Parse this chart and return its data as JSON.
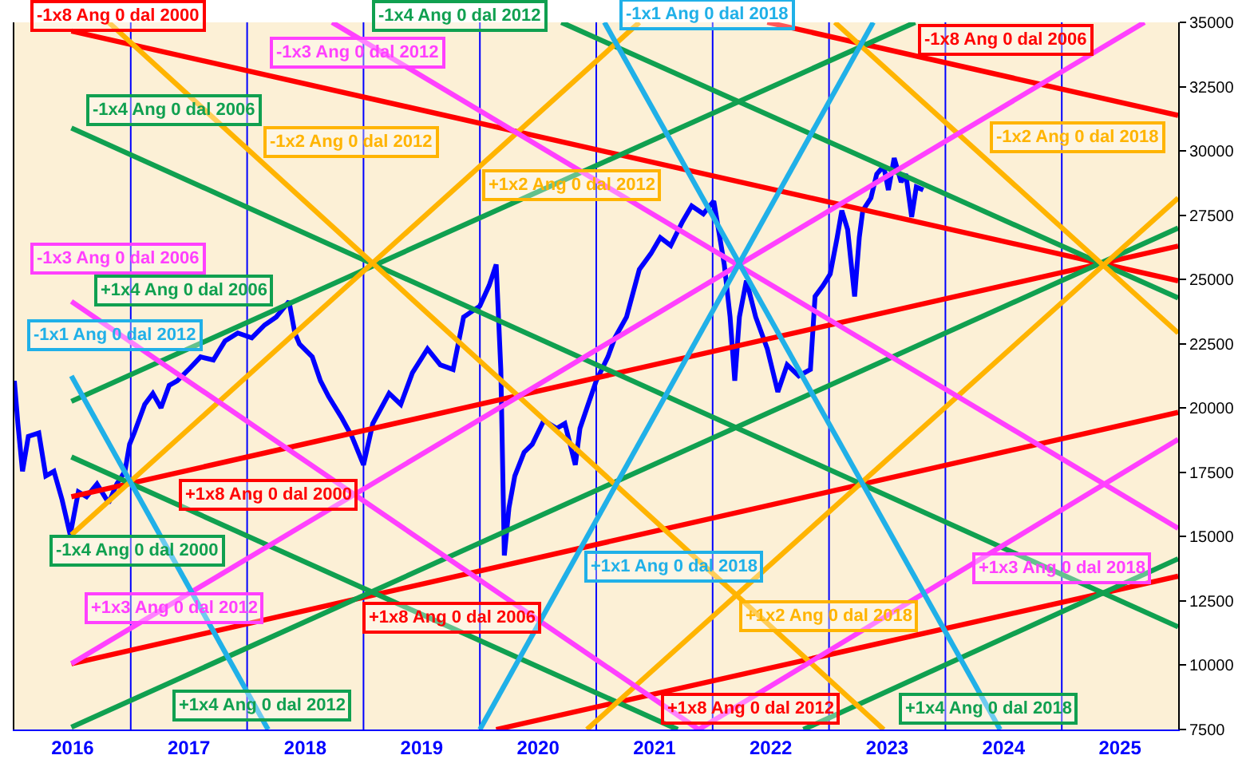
{
  "chart_data": {
    "type": "line",
    "xlim": [
      2016,
      2026
    ],
    "ylim": [
      7500,
      35000
    ],
    "xticks": [
      {
        "value": 2016.5,
        "label": "2016"
      },
      {
        "value": 2017.5,
        "label": "2017"
      },
      {
        "value": 2018.5,
        "label": "2018"
      },
      {
        "value": 2019.5,
        "label": "2019"
      },
      {
        "value": 2020.5,
        "label": "2020"
      },
      {
        "value": 2021.5,
        "label": "2021"
      },
      {
        "value": 2022.5,
        "label": "2022"
      },
      {
        "value": 2023.5,
        "label": "2023"
      },
      {
        "value": 2024.5,
        "label": "2024"
      },
      {
        "value": 2025.5,
        "label": "2025"
      }
    ],
    "yticks": [
      7500,
      10000,
      12500,
      15000,
      17500,
      20000,
      22500,
      25000,
      27500,
      30000,
      32500,
      35000
    ],
    "grid": false,
    "legend": false,
    "ref_lines": [
      {
        "axis": "x",
        "value": 2017,
        "color": "#0000ff"
      },
      {
        "axis": "x",
        "value": 2018,
        "color": "#0000ff"
      },
      {
        "axis": "x",
        "value": 2019,
        "color": "#0000ff"
      },
      {
        "axis": "x",
        "value": 2020,
        "color": "#0000ff"
      },
      {
        "axis": "x",
        "value": 2021,
        "color": "#0000ff"
      },
      {
        "axis": "x",
        "value": 2022,
        "color": "#0000ff"
      },
      {
        "axis": "x",
        "value": 2023,
        "color": "#0000ff"
      },
      {
        "axis": "x",
        "value": 2024,
        "color": "#0000ff"
      },
      {
        "axis": "x",
        "value": 2025,
        "color": "#0000ff"
      }
    ],
    "series": [
      {
        "color": "#0000ff",
        "x": [
          2016.0,
          2016.03,
          2016.07,
          2016.12,
          2016.21,
          2016.27,
          2016.34,
          2016.41,
          2016.48,
          2016.55,
          2016.62,
          2016.71,
          2016.81,
          2016.88,
          2016.95,
          2016.99,
          2017.03,
          2017.12,
          2017.19,
          2017.26,
          2017.33,
          2017.4,
          2017.51,
          2017.6,
          2017.71,
          2017.81,
          2017.92,
          2018.04,
          2018.15,
          2018.25,
          2018.36,
          2018.41,
          2018.45,
          2018.56,
          2018.63,
          2018.7,
          2018.81,
          2018.9,
          2019.0,
          2019.08,
          2019.22,
          2019.32,
          2019.42,
          2019.55,
          2019.66,
          2019.77,
          2019.86,
          2020.0,
          2020.08,
          2020.14,
          2020.18,
          2020.21,
          2020.25,
          2020.3,
          2020.38,
          2020.45,
          2020.55,
          2020.66,
          2020.73,
          2020.82,
          2020.86,
          2020.92,
          2021.0,
          2021.1,
          2021.16,
          2021.26,
          2021.37,
          2021.47,
          2021.55,
          2021.64,
          2021.74,
          2021.82,
          2021.92,
          2022.01,
          2022.1,
          2022.15,
          2022.19,
          2022.23,
          2022.29,
          2022.37,
          2022.47,
          2022.52,
          2022.56,
          2022.64,
          2022.74,
          2022.84,
          2022.88,
          2022.95,
          2023.01,
          2023.07,
          2023.11,
          2023.16,
          2023.22,
          2023.26,
          2023.29,
          2023.36,
          2023.41,
          2023.47,
          2023.51,
          2023.56,
          2023.62,
          2023.66,
          2023.71,
          2023.75,
          2023.81
        ],
        "values": [
          21060,
          19400,
          17540,
          18900,
          19030,
          17360,
          17540,
          16430,
          15070,
          16740,
          16550,
          17050,
          16310,
          17050,
          17540,
          18590,
          19030,
          20140,
          20570,
          20010,
          20880,
          21060,
          21560,
          21990,
          21870,
          22610,
          22920,
          22730,
          23230,
          23540,
          24150,
          22920,
          22490,
          21990,
          21060,
          20450,
          19640,
          18900,
          17790,
          19400,
          20570,
          20140,
          21370,
          22300,
          21680,
          21500,
          23540,
          23970,
          24770,
          25580,
          21500,
          14270,
          16120,
          17360,
          18280,
          18590,
          19520,
          19210,
          19400,
          17790,
          19210,
          20010,
          21060,
          21990,
          22730,
          23540,
          25390,
          26010,
          26630,
          26320,
          27240,
          27860,
          27550,
          28050,
          25580,
          23540,
          21060,
          23540,
          24960,
          23540,
          22300,
          21370,
          20630,
          21680,
          21250,
          21500,
          24340,
          24770,
          25210,
          26630,
          27680,
          26940,
          24340,
          26630,
          27680,
          28170,
          29100,
          29410,
          28480,
          29720,
          28790,
          29100,
          27430,
          28600,
          28480
        ]
      },
      {
        "name": "-1x8 Ang 0 dal 2000",
        "color": "#ff0000",
        "x": [
          2016.49,
          2026
        ],
        "values": [
          34660,
          24950
        ]
      },
      {
        "name": "-1x8 Ang 0 dal 2006",
        "color": "#ff0000",
        "x": [
          2022.47,
          2026
        ],
        "values": [
          35000,
          31380
        ]
      },
      {
        "name": "+1x8 Ang 0 dal 2000",
        "color": "#ff0000",
        "x": [
          2016.49,
          2026
        ],
        "values": [
          16550,
          26300
        ]
      },
      {
        "name": "+1x8 Ang 0 dal 2006",
        "color": "#ff0000",
        "x": [
          2016.49,
          2026
        ],
        "values": [
          10060,
          19830
        ]
      },
      {
        "name": "+1x8 Ang 0 dal 2012",
        "color": "#ff0000",
        "x": [
          2020.14,
          2026
        ],
        "values": [
          7500,
          13460
        ]
      },
      {
        "name": "-1x4 Ang 0 dal 2006",
        "color": "#10a050",
        "x": [
          2016.49,
          2026
        ],
        "values": [
          30890,
          11490
        ]
      },
      {
        "name": "-1x4 Ang 0 dal 2012",
        "color": "#10a050",
        "x": [
          2020.7,
          2026
        ],
        "values": [
          35000,
          24280
        ]
      },
      {
        "name": "-1x4 Ang 0 dal 2000",
        "color": "#10a050",
        "x": [
          2016.49,
          2021.7
        ],
        "values": [
          18100,
          7500
        ]
      },
      {
        "name": "+1x4 Ang 0 dal 2006",
        "color": "#10a050",
        "x": [
          2016.49,
          2023.74
        ],
        "values": [
          20260,
          35000
        ]
      },
      {
        "name": "+1x4 Ang 0 dal 2012",
        "color": "#10a050",
        "x": [
          2016.49,
          2026
        ],
        "values": [
          7590,
          27000
        ]
      },
      {
        "name": "+1x4 Ang 0 dal 2018",
        "color": "#10a050",
        "x": [
          2022.78,
          2026
        ],
        "values": [
          7500,
          14140
        ]
      },
      {
        "name": "-1x2 Ang 0 dal 2012",
        "color": "#ffb400",
        "x": [
          2016.81,
          2023.47
        ],
        "values": [
          35000,
          7500
        ]
      },
      {
        "name": "+1x2 Ang 0 dal 2012",
        "color": "#ffb400",
        "x": [
          2016.49,
          2021.37
        ],
        "values": [
          15070,
          35000
        ]
      },
      {
        "name": "-1x2 Ang 0 dal 2018",
        "color": "#ffb400",
        "x": [
          2023.05,
          2026
        ],
        "values": [
          35000,
          22920
        ]
      },
      {
        "name": "+1x2 Ang 0 dal 2018",
        "color": "#ffb400",
        "x": [
          2020.92,
          2026
        ],
        "values": [
          7500,
          28170
        ]
      },
      {
        "name": "-1x3 Ang 0 dal 2012",
        "color": "#ff40ff",
        "x": [
          2018.73,
          2026
        ],
        "values": [
          35000,
          15320
        ]
      },
      {
        "name": "-1x3 Ang 0 dal 2006",
        "color": "#ff40ff",
        "x": [
          2016.49,
          2021.88
        ],
        "values": [
          24150,
          7500
        ]
      },
      {
        "name": "+1x3 Ang 0 dal 2012",
        "color": "#ff40ff",
        "x": [
          2016.49,
          2025.71
        ],
        "values": [
          10060,
          35000
        ]
      },
      {
        "name": "+1x3 Ang 0 dal 2018",
        "color": "#ff40ff",
        "x": [
          2021.88,
          2026
        ],
        "values": [
          7500,
          18780
        ]
      },
      {
        "name": "-1x1 Ang 0 dal 2012",
        "color": "#20b0e8",
        "x": [
          2016.49,
          2018.18
        ],
        "values": [
          21250,
          7500
        ]
      },
      {
        "name": "-1x1 Ang 0 dal 2018",
        "color": "#20b0e8",
        "x": [
          2021.07,
          2024.47
        ],
        "values": [
          35000,
          7500
        ]
      },
      {
        "name": "+1x1 Ang 0 dal 2018",
        "color": "#20b0e8",
        "x": [
          2020.0,
          2023.38
        ],
        "values": [
          7500,
          35000
        ]
      }
    ]
  }
}
